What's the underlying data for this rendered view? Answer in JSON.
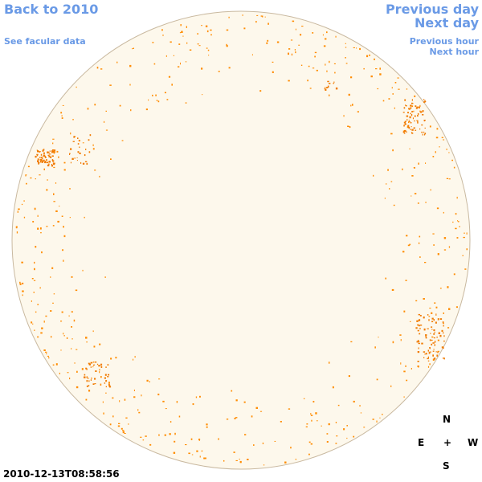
{
  "nav": {
    "back_label": "Back to 2010",
    "facular_label": "See facular data",
    "prev_day_label": "Previous day",
    "next_day_label": "Next day",
    "prev_hour_label": "Previous hour",
    "next_hour_label": "Next hour",
    "link_color": "#6a9ae6"
  },
  "image": {
    "timestamp": "2010-12-13T08:58:56",
    "disk_color": "#fdf8ec",
    "limb_color": "#c9b9a0",
    "spot_color": "#ff8c00",
    "active_region_color": "#f07a00"
  },
  "compass": {
    "north": "N",
    "south": "S",
    "east": "E",
    "west": "W",
    "center": "+"
  }
}
